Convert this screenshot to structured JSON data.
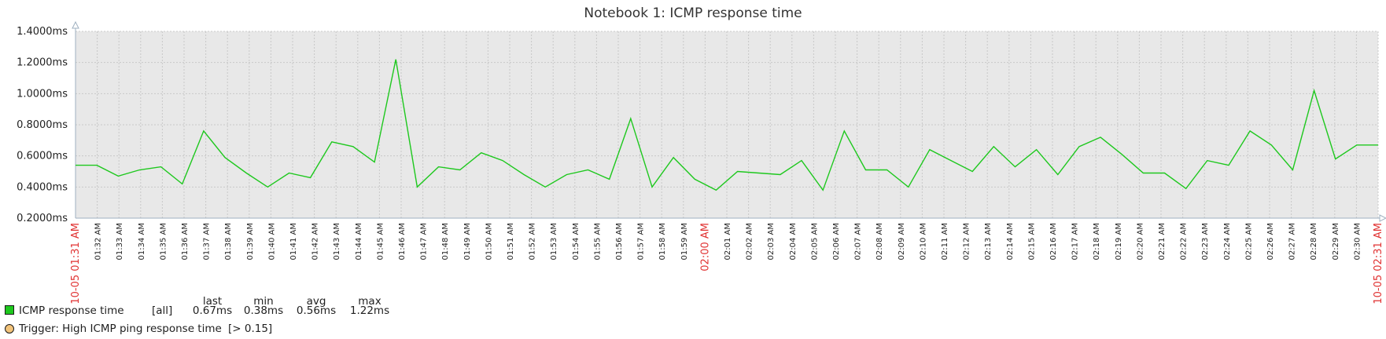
{
  "chart_data": {
    "type": "line",
    "title": "Notebook 1: ICMP response time",
    "y_ticks": [
      "1.4000ms",
      "1.2000ms",
      "1.0000ms",
      "0.8000ms",
      "0.6000ms",
      "0.4000ms",
      "0.2000ms"
    ],
    "ylim": [
      0.2,
      1.4
    ],
    "grid": true,
    "x_start_label": "10-05 01:31 AM",
    "x_end_label": "10-05 02:31 AM",
    "x_ticks": [
      "01:32 AM",
      "01:33 AM",
      "01:34 AM",
      "01:35 AM",
      "01:36 AM",
      "01:37 AM",
      "01:38 AM",
      "01:39 AM",
      "01:40 AM",
      "01:41 AM",
      "01:42 AM",
      "01:43 AM",
      "01:44 AM",
      "01:45 AM",
      "01:46 AM",
      "01:47 AM",
      "01:48 AM",
      "01:49 AM",
      "01:50 AM",
      "01:51 AM",
      "01:52 AM",
      "01:53 AM",
      "01:54 AM",
      "01:55 AM",
      "01:56 AM",
      "01:57 AM",
      "01:58 AM",
      "01:59 AM",
      "02:00 AM",
      "02:01 AM",
      "02:02 AM",
      "02:03 AM",
      "02:04 AM",
      "02:05 AM",
      "02:06 AM",
      "02:07 AM",
      "02:08 AM",
      "02:09 AM",
      "02:10 AM",
      "02:11 AM",
      "02:12 AM",
      "02:13 AM",
      "02:14 AM",
      "02:15 AM",
      "02:16 AM",
      "02:17 AM",
      "02:18 AM",
      "02:19 AM",
      "02:20 AM",
      "02:21 AM",
      "02:22 AM",
      "02:23 AM",
      "02:24 AM",
      "02:25 AM",
      "02:26 AM",
      "02:27 AM",
      "02:28 AM",
      "02:29 AM",
      "02:30 AM"
    ],
    "highlight_tick": "02:00 AM",
    "series": [
      {
        "name": "ICMP response time",
        "color": "#1ec81e",
        "values": [
          0.54,
          0.54,
          0.47,
          0.51,
          0.53,
          0.42,
          0.76,
          0.59,
          0.49,
          0.4,
          0.49,
          0.46,
          0.69,
          0.66,
          0.56,
          1.22,
          0.4,
          0.53,
          0.51,
          0.62,
          0.57,
          0.48,
          0.4,
          0.48,
          0.51,
          0.45,
          0.84,
          0.4,
          0.59,
          0.45,
          0.38,
          0.5,
          0.49,
          0.48,
          0.57,
          0.38,
          0.76,
          0.51,
          0.51,
          0.4,
          0.64,
          0.57,
          0.5,
          0.66,
          0.53,
          0.64,
          0.48,
          0.66,
          0.72,
          0.61,
          0.49,
          0.49,
          0.39,
          0.57,
          0.54,
          0.76,
          0.67,
          0.51,
          1.02,
          0.58,
          0.67,
          0.67
        ]
      }
    ]
  },
  "legend": {
    "headers": {
      "last": "last",
      "min": "min",
      "avg": "avg",
      "max": "max"
    },
    "item_name": "ICMP response time",
    "item_scope": "[all]",
    "last": "0.67ms",
    "min": "0.38ms",
    "avg": "0.56ms",
    "max": "1.22ms",
    "trigger": "Trigger: High ICMP ping response time",
    "trigger_condition": "[> 0.15]"
  },
  "colors": {
    "plot_bg": "#e8e8e8",
    "grid": "#c8c8c8",
    "axis": "#9fb0c0",
    "highlight_label": "#e03030",
    "trigger_marker": "#f2c37a"
  }
}
